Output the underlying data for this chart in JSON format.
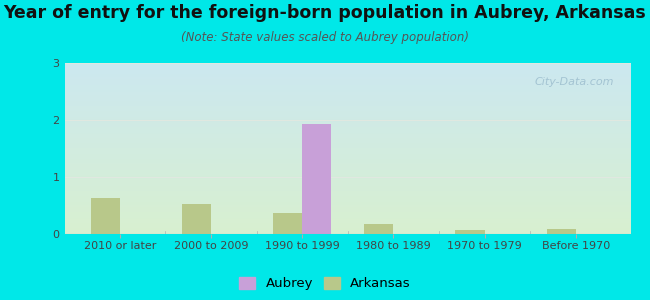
{
  "title": "Year of entry for the foreign-born population in Aubrey, Arkansas",
  "subtitle": "(Note: State values scaled to Aubrey population)",
  "categories": [
    "2010 or later",
    "2000 to 2009",
    "1990 to 1999",
    "1980 to 1989",
    "1970 to 1979",
    "Before 1970"
  ],
  "aubrey_values": [
    0,
    0,
    1.93,
    0,
    0,
    0
  ],
  "arkansas_values": [
    0.63,
    0.52,
    0.37,
    0.18,
    0.07,
    0.08
  ],
  "aubrey_color": "#c8a0d8",
  "arkansas_color": "#b8c88a",
  "background_outer": "#00e8e8",
  "background_plot_top": "#cce8f0",
  "background_plot_bottom": "#d8f0d0",
  "ylim": [
    0,
    3
  ],
  "yticks": [
    0,
    1,
    2,
    3
  ],
  "bar_width": 0.32,
  "title_fontsize": 12.5,
  "subtitle_fontsize": 8.5,
  "tick_fontsize": 8,
  "legend_fontsize": 9.5,
  "watermark_text": "City-Data.com",
  "grid_color": "#e0e8e0",
  "axis_line_color": "#b0b0b0"
}
